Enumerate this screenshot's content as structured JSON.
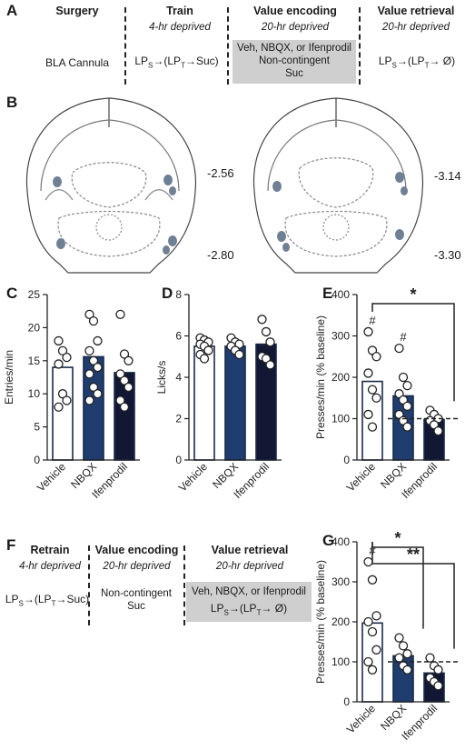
{
  "panels": {
    "A": "A",
    "B": "B",
    "C": "C",
    "D": "D",
    "E": "E",
    "F": "F",
    "G": "G"
  },
  "panel_a": {
    "headers": [
      "Surgery",
      "Train",
      "Value encoding",
      "Value retrieval"
    ],
    "subs": [
      "",
      "4-hr deprived",
      "20-hr deprived",
      "20-hr deprived"
    ],
    "surgery_text": "BLA Cannula",
    "train_lp": "LP",
    "train_s": "S",
    "train_mid": "→(LP",
    "train_t": "T",
    "train_end": "→Suc)",
    "encoding_lines": [
      "Veh, NBQX, or Ifenprodil",
      "Non-contingent",
      "Suc"
    ],
    "retrieval_lp": "LP",
    "retrieval_s": "S",
    "retrieval_mid": "→(LP",
    "retrieval_t": "T",
    "retrieval_end": "→ Ø)"
  },
  "panel_b": {
    "coords": [
      "-2.56",
      "-2.80",
      "-3.14",
      "-3.30"
    ]
  },
  "panel_f": {
    "headers": [
      "Retrain",
      "Value encoding",
      "Value retrieval"
    ],
    "subs": [
      "4-hr deprived",
      "20-hr deprived",
      "20-hr deprived"
    ],
    "retrain_lp": "LP",
    "retrain_s": "S",
    "retrain_mid": "→(LP",
    "retrain_t": "T",
    "retrain_end": "→Suc)",
    "encoding_lines": [
      "Non-contingent",
      "Suc"
    ],
    "retrieval_line1": "Veh, NBQX, or Ifenprodil",
    "retrieval_lp": "LP",
    "retrieval_s": "S",
    "retrieval_mid": "→(LP",
    "retrieval_t": "T",
    "retrieval_end": "→ Ø)"
  },
  "colors": {
    "vehicle": "#ffffff",
    "nbqx": "#1f3d6e",
    "ifenprodil": "#121833",
    "outline": "#1a2a4a"
  },
  "chart_data": [
    {
      "id": "C",
      "type": "bar",
      "categories": [
        "Vehicle",
        "NBQX",
        "Ifenprodil"
      ],
      "values": [
        14.0,
        15.6,
        13.2
      ],
      "points": [
        [
          18,
          16.5,
          15.5,
          14.5,
          10,
          9,
          8
        ],
        [
          22,
          21,
          18,
          16.5,
          15,
          14,
          13,
          11,
          10,
          9
        ],
        [
          22,
          16,
          15,
          13,
          12,
          11,
          9,
          8
        ]
      ],
      "ylabel": "Entries/min",
      "ylim": [
        0,
        25
      ],
      "yticks": [
        0,
        5,
        10,
        15,
        20,
        25
      ],
      "annotations": []
    },
    {
      "id": "D",
      "type": "bar",
      "categories": [
        "Vehicle",
        "NBQX",
        "Ifenprodil"
      ],
      "values": [
        5.5,
        5.5,
        5.6
      ],
      "points": [
        [
          5.9,
          5.8,
          5.7,
          5.6,
          5.5,
          5.3,
          5.1,
          4.9
        ],
        [
          5.9,
          5.7,
          5.6,
          5.5,
          5.3,
          5.1
        ],
        [
          6.8,
          6.2,
          5.7,
          5.0,
          4.9,
          4.6
        ]
      ],
      "ylabel": "Licks/s",
      "ylim": [
        0,
        8
      ],
      "yticks": [
        0,
        2,
        4,
        6,
        8
      ],
      "annotations": []
    },
    {
      "id": "E",
      "type": "bar",
      "categories": [
        "Vehicle",
        "NBQX",
        "Ifenprodil"
      ],
      "values": [
        190,
        155,
        98
      ],
      "points": [
        [
          310,
          265,
          250,
          210,
          170,
          150,
          110,
          80
        ],
        [
          270,
          200,
          180,
          160,
          145,
          130,
          110,
          95,
          80
        ],
        [
          120,
          110,
          100,
          95,
          85,
          70
        ]
      ],
      "ylabel": "Presses/min (% baseline)",
      "ylim": [
        0,
        400
      ],
      "yticks": [
        0,
        100,
        200,
        300,
        400
      ],
      "baseline": 100,
      "hash_marks": [
        "#",
        "#",
        ""
      ],
      "annotations": [
        {
          "text": "*",
          "from": "Vehicle",
          "to": "Ifenprodil"
        }
      ]
    },
    {
      "id": "G",
      "type": "bar",
      "categories": [
        "Vehicle",
        "NBQX",
        "Ifenprodil"
      ],
      "values": [
        197,
        115,
        72
      ],
      "points": [
        [
          350,
          305,
          215,
          200,
          175,
          130,
          100,
          80
        ],
        [
          160,
          140,
          120,
          110,
          90,
          80
        ],
        [
          110,
          90,
          80,
          60,
          50,
          40
        ]
      ],
      "ylabel": "Presses/min (% baseline)",
      "ylim": [
        0,
        400
      ],
      "yticks": [
        0,
        100,
        200,
        300,
        400
      ],
      "baseline": 100,
      "hash_marks": [
        "#",
        "",
        ""
      ],
      "annotations": [
        {
          "text": "*",
          "from": "Vehicle",
          "to": "NBQX"
        },
        {
          "text": "**",
          "from": "Vehicle",
          "to": "Ifenprodil"
        }
      ]
    }
  ]
}
